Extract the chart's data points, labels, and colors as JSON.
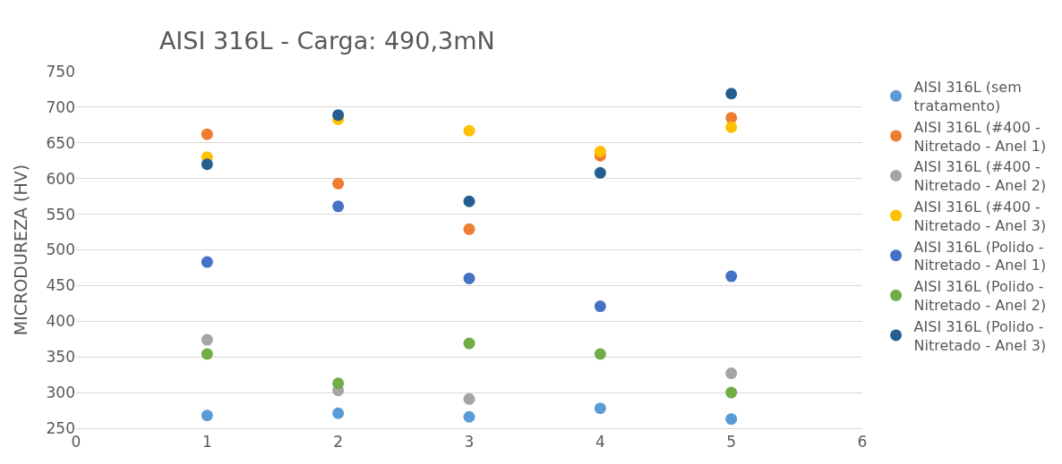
{
  "chart_data": {
    "type": "scatter",
    "title": "AISI 316L - Carga: 490,3mN",
    "ylabel": "MICRODUREZA (HV)",
    "x": [
      1,
      2,
      3,
      4,
      5
    ],
    "series": [
      {
        "name": "AISI 316L (sem tratamento)",
        "color": "#5b9bd5",
        "values": [
          268,
          271,
          266,
          278,
          263
        ]
      },
      {
        "name": "AISI 316L (#400 - Nitretado - Anel 1)",
        "color": "#ed7d31",
        "values": [
          662,
          593,
          529,
          632,
          685
        ]
      },
      {
        "name": "AISI 316L (#400 - Nitretado - Anel 2)",
        "color": "#a5a5a5",
        "values": [
          374,
          303,
          291,
          null,
          327
        ]
      },
      {
        "name": "AISI 316L (#400 - Nitretado - Anel 3)",
        "color": "#ffc000",
        "values": [
          630,
          683,
          667,
          638,
          672
        ]
      },
      {
        "name": "AISI 316L (Polido - Nitretado - Anel 1)",
        "color": "#4472c4",
        "values": [
          483,
          561,
          460,
          421,
          463
        ]
      },
      {
        "name": "AISI 316L (Polido - Nitretado - Anel 2)",
        "color": "#70ad47",
        "values": [
          354,
          313,
          369,
          354,
          300
        ]
      },
      {
        "name": "AISI 316L (Polido - Nitretado - Anel 3)",
        "color": "#255e91",
        "values": [
          620,
          689,
          568,
          608,
          719
        ]
      }
    ],
    "xlim": [
      0,
      6
    ],
    "xticks": [
      0,
      1,
      2,
      3,
      4,
      5,
      6
    ],
    "ylim": [
      250,
      750
    ],
    "yticks": [
      250,
      300,
      350,
      400,
      450,
      500,
      550,
      600,
      650,
      700,
      750
    ],
    "grid": "y",
    "legend": "right",
    "marker": "circle"
  }
}
